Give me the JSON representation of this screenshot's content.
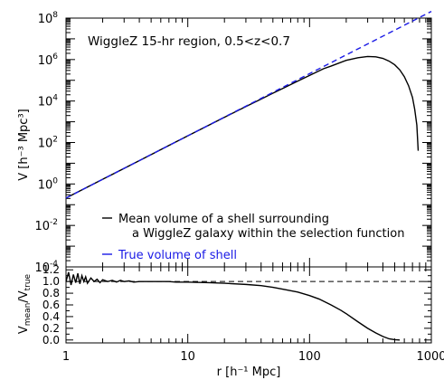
{
  "chart_data": [
    {
      "type": "line",
      "title": "",
      "annotation": "WiggleZ 15-hr region, 0.5<z<0.7",
      "xscale": "log",
      "yscale": "log",
      "xlim": [
        1,
        1000
      ],
      "ylim": [
        0.0001,
        100000000
      ],
      "xlabel": "",
      "ylabel": "V [h⁻³ Mpc³]",
      "x_ticks": [
        "1",
        "10",
        "100",
        "1000"
      ],
      "y_ticks": [
        {
          "base": "10",
          "exp": "-4"
        },
        {
          "base": "10",
          "exp": "-2"
        },
        {
          "base": "10",
          "exp": "0"
        },
        {
          "base": "10",
          "exp": "2"
        },
        {
          "base": "10",
          "exp": "4"
        },
        {
          "base": "10",
          "exp": "6"
        },
        {
          "base": "10",
          "exp": "8"
        }
      ],
      "legend_position": "bottom-left",
      "series": [
        {
          "name": "Mean volume of a shell surrounding a WiggleZ galaxy within the selection function",
          "legend_lines": [
            "Mean volume of a shell surrounding",
            "a WiggleZ galaxy within the selection function"
          ],
          "color": "#000000",
          "dash": "solid",
          "x": [
            1,
            1.2,
            1.5,
            2,
            3,
            5,
            7,
            10,
            15,
            20,
            30,
            40,
            50,
            60,
            80,
            100,
            130,
            150,
            200,
            250,
            300,
            350,
            400,
            450,
            500,
            550,
            600,
            650,
            700,
            730,
            760,
            780
          ],
          "y": [
            0.21,
            0.365,
            0.71,
            1.68,
            5.65,
            26.2,
            71.8,
            209,
            702,
            1640,
            5440,
            12500,
            23800,
            40000,
            92000,
            172000,
            360000,
            484000,
            920000,
            1230000,
            1400000,
            1350000,
            1140000,
            840000,
            560000,
            320000,
            150000,
            55000,
            15000,
            4000,
            700,
            40
          ]
        },
        {
          "name": "True volume of shell",
          "legend_lines": [
            "True volume of shell"
          ],
          "color": "#1a1ae6",
          "dash": "dashed",
          "x": [
            1,
            1000
          ],
          "y": [
            0.21,
            210000000
          ]
        }
      ]
    },
    {
      "type": "line",
      "title": "",
      "xscale": "log",
      "xlim": [
        1,
        1000
      ],
      "ylim": [
        -0.05,
        1.25
      ],
      "xlabel": "r [h⁻¹ Mpc]",
      "ylabel": "V_mean / V_true",
      "ylabel_main": "V",
      "ylabel_sub1": "mean",
      "ylabel_sep": "/V",
      "ylabel_sub2": "true",
      "x_ticks": [
        "1",
        "10",
        "100",
        "1000"
      ],
      "y_ticks": [
        "0.0",
        "0.2",
        "0.4",
        "0.6",
        "0.8",
        "1.0",
        "1.2"
      ],
      "reference_line": {
        "y": 1.0,
        "style": "dashed"
      },
      "series": [
        {
          "name": "",
          "color": "#000000",
          "x": [
            1,
            1.05,
            1.1,
            1.15,
            1.2,
            1.25,
            1.3,
            1.35,
            1.4,
            1.45,
            1.5,
            1.6,
            1.7,
            1.8,
            1.9,
            2,
            2.2,
            2.4,
            2.6,
            2.8,
            3,
            3.3,
            3.6,
            4,
            4.5,
            5,
            5.5,
            6,
            7,
            8,
            9,
            10,
            15,
            20,
            30,
            40,
            50,
            60,
            80,
            100,
            120,
            150,
            180,
            200,
            250,
            300,
            350,
            400,
            450,
            500,
            550
          ],
          "y": [
            1.0,
            1.16,
            0.94,
            1.12,
            0.98,
            1.14,
            0.96,
            1.1,
            1.0,
            1.08,
            0.97,
            1.06,
            1.0,
            1.04,
            0.98,
            1.03,
            1.0,
            1.02,
            0.99,
            1.02,
            1.0,
            1.01,
            0.99,
            1.0,
            1.0,
            1.0,
            1.0,
            1.0,
            1.0,
            0.99,
            0.99,
            0.99,
            0.98,
            0.97,
            0.95,
            0.93,
            0.9,
            0.87,
            0.82,
            0.76,
            0.7,
            0.6,
            0.51,
            0.45,
            0.31,
            0.2,
            0.12,
            0.06,
            0.02,
            0.005,
            0.0
          ]
        }
      ]
    }
  ]
}
